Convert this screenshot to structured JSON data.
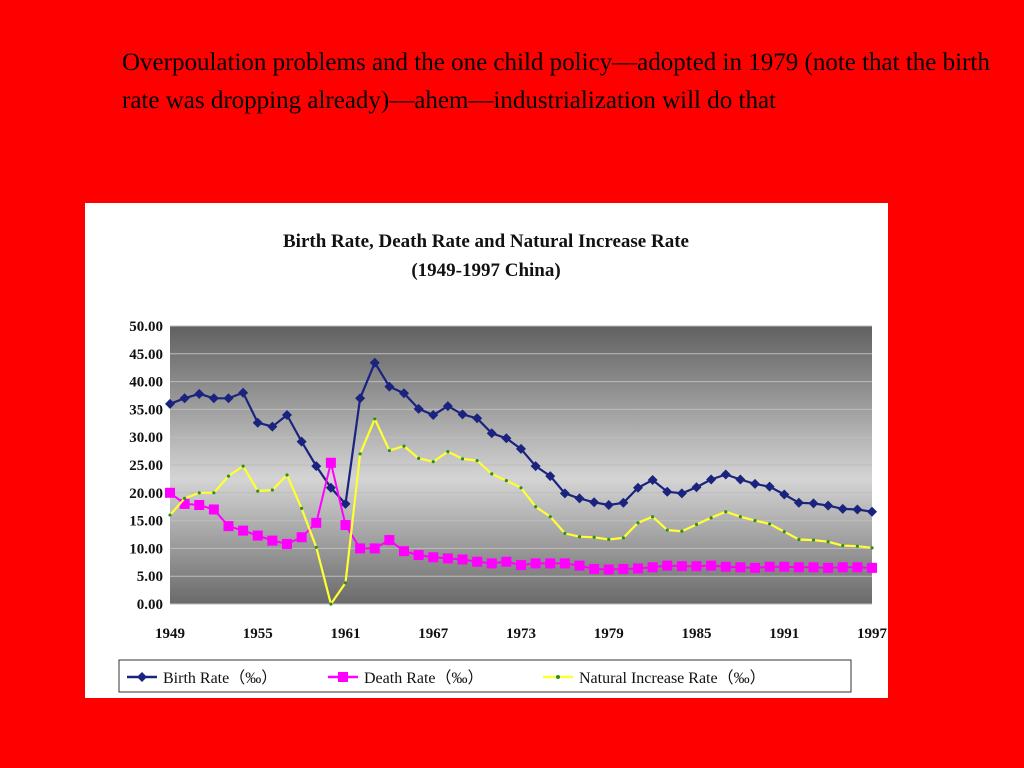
{
  "slide": {
    "text": "Overpoulation problems and the one child policy—adopted in 1979 (note that the birth rate was dropping already)—ahem—industrialization will do that"
  },
  "colors": {
    "background": "#ff0000",
    "birth": "#1a237e",
    "death": "#ff00ff",
    "natural": "#ffff33",
    "natural_marker": "#2e8b2e"
  },
  "chart_data": {
    "type": "line",
    "title": "Birth Rate, Death Rate and Natural Increase Rate",
    "subtitle": "(1949-1997  China)",
    "x": [
      1949,
      1950,
      1951,
      1952,
      1953,
      1954,
      1955,
      1956,
      1957,
      1958,
      1959,
      1960,
      1961,
      1962,
      1963,
      1964,
      1965,
      1966,
      1967,
      1968,
      1969,
      1970,
      1971,
      1972,
      1973,
      1974,
      1975,
      1976,
      1977,
      1978,
      1979,
      1980,
      1981,
      1982,
      1983,
      1984,
      1985,
      1986,
      1987,
      1988,
      1989,
      1990,
      1991,
      1992,
      1993,
      1994,
      1995,
      1996,
      1997
    ],
    "xticks": [
      "1949",
      "1955",
      "1961",
      "1967",
      "1973",
      "1979",
      "1985",
      "1991",
      "1997"
    ],
    "yticks": [
      "50.00",
      "45.00",
      "40.00",
      "35.00",
      "30.00",
      "25.00",
      "20.00",
      "15.00",
      "10.00",
      "5.00",
      "0.00"
    ],
    "ylim": [
      0,
      50
    ],
    "series": [
      {
        "name": "Birth Rate（‰）",
        "key": "birth",
        "values": [
          36.0,
          37.0,
          37.8,
          37.0,
          37.0,
          38.0,
          32.6,
          31.9,
          34.0,
          29.2,
          24.8,
          20.9,
          18.0,
          37.0,
          43.4,
          39.1,
          37.9,
          35.1,
          34.0,
          35.6,
          34.1,
          33.4,
          30.7,
          29.8,
          27.9,
          24.8,
          23.0,
          19.9,
          19.0,
          18.3,
          17.8,
          18.2,
          20.9,
          22.3,
          20.2,
          19.9,
          21.0,
          22.4,
          23.3,
          22.4,
          21.6,
          21.1,
          19.7,
          18.2,
          18.1,
          17.7,
          17.1,
          17.0,
          16.6
        ]
      },
      {
        "name": "Death Rate（‰）",
        "key": "death",
        "values": [
          20.0,
          18.0,
          17.8,
          17.0,
          14.0,
          13.2,
          12.3,
          11.4,
          10.8,
          12.0,
          14.6,
          25.4,
          14.2,
          10.0,
          10.0,
          11.5,
          9.5,
          8.8,
          8.4,
          8.2,
          8.0,
          7.6,
          7.3,
          7.6,
          7.0,
          7.3,
          7.3,
          7.3,
          6.9,
          6.3,
          6.2,
          6.3,
          6.4,
          6.6,
          6.9,
          6.8,
          6.8,
          6.9,
          6.7,
          6.6,
          6.5,
          6.7,
          6.7,
          6.6,
          6.6,
          6.5,
          6.6,
          6.6,
          6.5
        ]
      },
      {
        "name": "Natural Increase Rate（‰）",
        "key": "natural",
        "values": [
          16.0,
          19.0,
          20.0,
          20.0,
          23.0,
          24.8,
          20.3,
          20.5,
          23.2,
          17.2,
          10.2,
          -4.6,
          3.8,
          27.0,
          33.3,
          27.6,
          28.4,
          26.2,
          25.6,
          27.4,
          26.1,
          25.8,
          23.4,
          22.2,
          20.9,
          17.5,
          15.7,
          12.7,
          12.1,
          12.0,
          11.6,
          11.9,
          14.6,
          15.7,
          13.3,
          13.1,
          14.3,
          15.5,
          16.6,
          15.7,
          15.0,
          14.4,
          13.0,
          11.6,
          11.5,
          11.2,
          10.5,
          10.4,
          10.1
        ]
      }
    ],
    "legend_position": "bottom",
    "grid": true
  }
}
